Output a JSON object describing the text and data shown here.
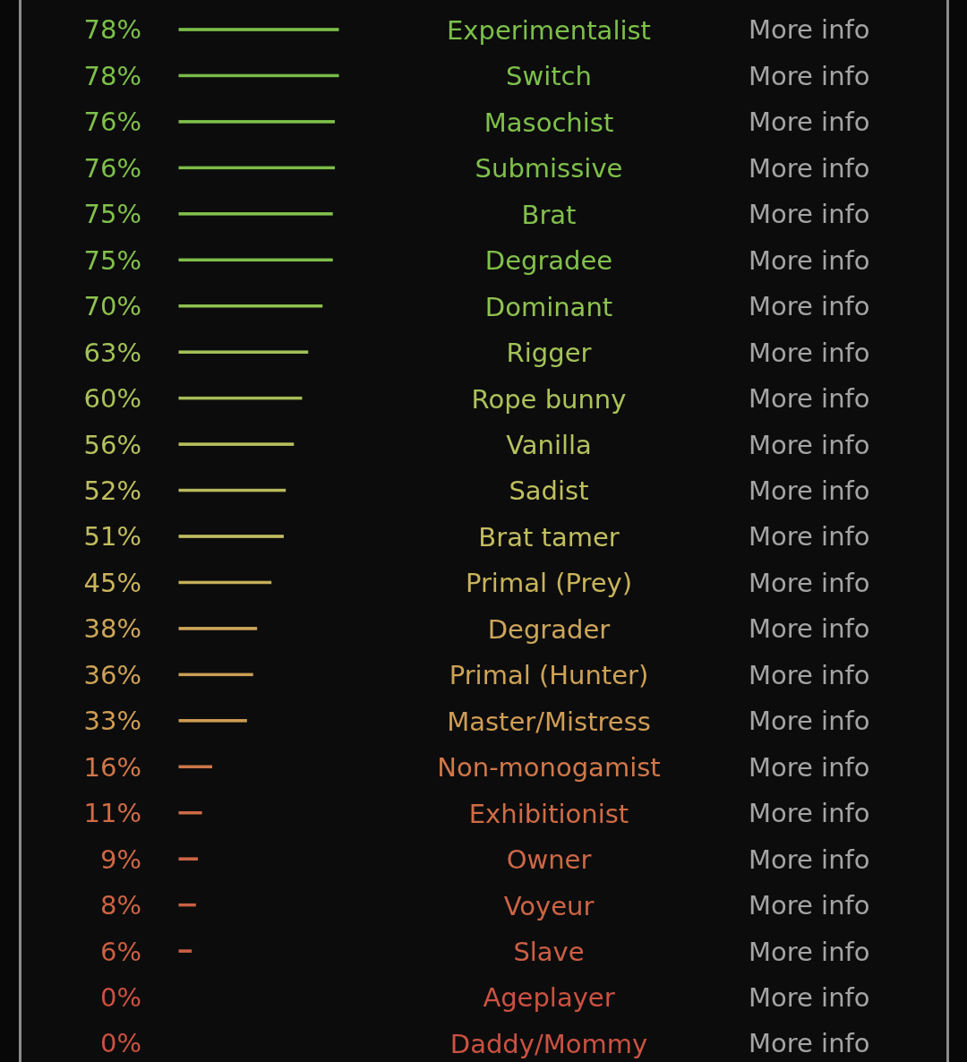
{
  "chart_data": {
    "type": "bar",
    "orientation": "horizontal",
    "categories": [
      "Experimentalist",
      "Switch",
      "Masochist",
      "Submissive",
      "Brat",
      "Degradee",
      "Dominant",
      "Rigger",
      "Rope bunny",
      "Vanilla",
      "Sadist",
      "Brat tamer",
      "Primal (Prey)",
      "Degrader",
      "Primal (Hunter)",
      "Master/Mistress",
      "Non-monogamist",
      "Exhibitionist",
      "Owner",
      "Voyeur",
      "Slave",
      "Ageplayer",
      "Daddy/Mommy"
    ],
    "values": [
      78,
      78,
      76,
      76,
      75,
      75,
      70,
      63,
      60,
      56,
      52,
      51,
      45,
      38,
      36,
      33,
      16,
      11,
      9,
      8,
      6,
      0,
      0
    ],
    "value_labels": [
      "78%",
      "78%",
      "76%",
      "76%",
      "75%",
      "75%",
      "70%",
      "63%",
      "60%",
      "56%",
      "52%",
      "51%",
      "45%",
      "38%",
      "36%",
      "33%",
      "16%",
      "11%",
      "9%",
      "8%",
      "6%",
      "0%",
      "0%"
    ],
    "colors": [
      "#7cc04a",
      "#7cc04a",
      "#7fc04b",
      "#7fc04b",
      "#82c04c",
      "#82c04c",
      "#8fc250",
      "#a3c258",
      "#abc25a",
      "#b6c15e",
      "#bfbf60",
      "#c2bd60",
      "#c9b45c",
      "#cda65a",
      "#cea257",
      "#cf9d55",
      "#d0784a",
      "#cf6c47",
      "#ce6746",
      "#cd6445",
      "#cc5f44",
      "#cb5242",
      "#cb5242"
    ],
    "annotations": [
      "More info",
      "More info",
      "More info",
      "More info",
      "More info",
      "More info",
      "More info",
      "More info",
      "More info",
      "More info",
      "More info",
      "More info",
      "More info",
      "More info",
      "More info",
      "More info",
      "More info",
      "More info",
      "More info",
      "More info",
      "More info",
      "More info",
      "More info"
    ]
  }
}
